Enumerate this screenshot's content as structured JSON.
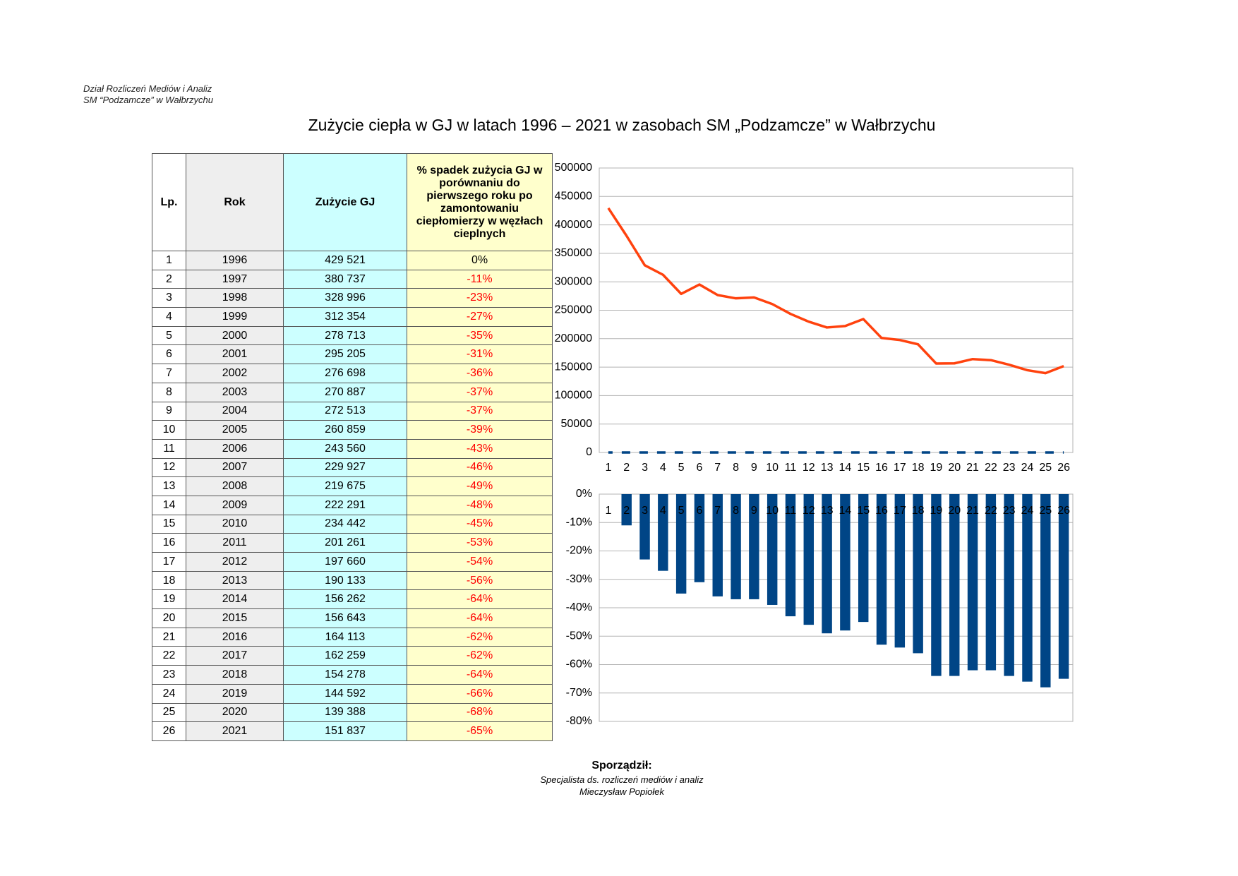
{
  "header": {
    "lines": [
      "Dział Rozliczeń Mediów i Analiz",
      "SM “Podzamcze” w Wałbrzychu"
    ]
  },
  "title": "Zużycie ciepła w GJ w latach 1996 – 2021 w zasobach SM „Podzamcze” w Wałbrzychu",
  "table": {
    "header": [
      "Lp.",
      "Rok",
      "Zużycie GJ",
      "% spadek zużycia GJ w porównaniu do pierwszego roku po zamontowaniu ciepłomierzy w węzłach cieplnych"
    ],
    "column_colors": [
      "#ffffff",
      "#eeeeee",
      "#ccffff",
      "#ffffcc"
    ],
    "negative_color": "#ff0000",
    "rows": [
      [
        "1",
        "1996",
        "429 521",
        "0%"
      ],
      [
        "2",
        "1997",
        "380 737",
        "-11%"
      ],
      [
        "3",
        "1998",
        "328 996",
        "-23%"
      ],
      [
        "4",
        "1999",
        "312 354",
        "-27%"
      ],
      [
        "5",
        "2000",
        "278 713",
        "-35%"
      ],
      [
        "6",
        "2001",
        "295 205",
        "-31%"
      ],
      [
        "7",
        "2002",
        "276 698",
        "-36%"
      ],
      [
        "8",
        "2003",
        "270 887",
        "-37%"
      ],
      [
        "9",
        "2004",
        "272 513",
        "-37%"
      ],
      [
        "10",
        "2005",
        "260 859",
        "-39%"
      ],
      [
        "11",
        "2006",
        "243 560",
        "-43%"
      ],
      [
        "12",
        "2007",
        "229 927",
        "-46%"
      ],
      [
        "13",
        "2008",
        "219 675",
        "-49%"
      ],
      [
        "14",
        "2009",
        "222 291",
        "-48%"
      ],
      [
        "15",
        "2010",
        "234 442",
        "-45%"
      ],
      [
        "16",
        "2011",
        "201 261",
        "-53%"
      ],
      [
        "17",
        "2012",
        "197 660",
        "-54%"
      ],
      [
        "18",
        "2013",
        "190 133",
        "-56%"
      ],
      [
        "19",
        "2014",
        "156 262",
        "-64%"
      ],
      [
        "20",
        "2015",
        "156 643",
        "-64%"
      ],
      [
        "21",
        "2016",
        "164 113",
        "-62%"
      ],
      [
        "22",
        "2017",
        "162 259",
        "-62%"
      ],
      [
        "23",
        "2018",
        "154 278",
        "-64%"
      ],
      [
        "24",
        "2019",
        "144 592",
        "-66%"
      ],
      [
        "25",
        "2020",
        "139 388",
        "-68%"
      ],
      [
        "26",
        "2021",
        "151 837",
        "-65%"
      ]
    ]
  },
  "chart_data": [
    {
      "type": "line",
      "categories": [
        "1",
        "2",
        "3",
        "4",
        "5",
        "6",
        "7",
        "8",
        "9",
        "10",
        "11",
        "12",
        "13",
        "14",
        "15",
        "16",
        "17",
        "18",
        "19",
        "20",
        "21",
        "22",
        "23",
        "24",
        "25",
        "26"
      ],
      "series": [
        {
          "color": "#ff420e",
          "values": [
            429521,
            380737,
            328996,
            312354,
            278713,
            295205,
            276698,
            270887,
            272513,
            260859,
            243560,
            229927,
            219675,
            222291,
            234442,
            201261,
            197660,
            190133,
            156262,
            156643,
            164113,
            162259,
            154278,
            144592,
            139388,
            151837
          ]
        },
        {
          "color": "#004586",
          "dashed": true,
          "values": [
            0,
            -0.11,
            -0.23,
            -0.27,
            -0.35,
            -0.31,
            -0.36,
            -0.37,
            -0.37,
            -0.39,
            -0.43,
            -0.46,
            -0.49,
            -0.48,
            -0.45,
            -0.53,
            -0.54,
            -0.56,
            -0.64,
            -0.64,
            -0.62,
            -0.62,
            -0.64,
            -0.66,
            -0.68,
            -0.65
          ]
        }
      ],
      "ylim": [
        0,
        500000
      ],
      "yticks": [
        0,
        50000,
        100000,
        150000,
        200000,
        250000,
        300000,
        350000,
        400000,
        450000,
        500000
      ],
      "grid": true
    },
    {
      "type": "bar",
      "categories": [
        "1",
        "2",
        "3",
        "4",
        "5",
        "6",
        "7",
        "8",
        "9",
        "10",
        "11",
        "12",
        "13",
        "14",
        "15",
        "16",
        "17",
        "18",
        "19",
        "20",
        "21",
        "22",
        "23",
        "24",
        "25",
        "26"
      ],
      "values": [
        0,
        -11,
        -23,
        -27,
        -35,
        -31,
        -36,
        -37,
        -37,
        -39,
        -43,
        -46,
        -49,
        -48,
        -45,
        -53,
        -54,
        -56,
        -64,
        -64,
        -62,
        -62,
        -64,
        -66,
        -68,
        -65
      ],
      "color": "#004586",
      "negative_label_color": "#ff0000",
      "ylim": [
        -80,
        0
      ],
      "yticks": [
        {
          "value": 0,
          "label": "0%"
        },
        {
          "value": -10,
          "label": "-10%"
        },
        {
          "value": -20,
          "label": "-20%"
        },
        {
          "value": -30,
          "label": "-30%"
        },
        {
          "value": -40,
          "label": "-40%"
        },
        {
          "value": -50,
          "label": "-50%"
        },
        {
          "value": -60,
          "label": "-60%"
        },
        {
          "value": -70,
          "label": "-70%"
        },
        {
          "value": -80,
          "label": "-80%"
        }
      ],
      "grid": true
    }
  ],
  "footer": {
    "lines": [
      "Sporządził:",
      "Specjalista ds. rozliczeń mediów i analiz",
      "Mieczysław Popiołek"
    ]
  }
}
